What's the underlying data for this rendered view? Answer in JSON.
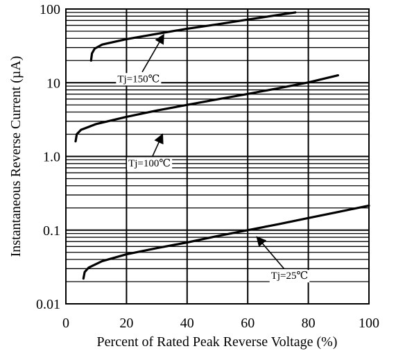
{
  "chart_data": {
    "type": "line",
    "title": "",
    "xlabel": "Percent of Rated Peak Reverse Voltage (%)",
    "ylabel": "Instantaneous Reverse Current (µA)",
    "x_scale": "linear",
    "y_scale": "log",
    "xlim": [
      0,
      100
    ],
    "ylim": [
      0.01,
      100
    ],
    "grid": true,
    "x_ticks": [
      0,
      20,
      40,
      60,
      80,
      100
    ],
    "x_tick_labels": [
      "0",
      "20",
      "40",
      "60",
      "80",
      "100"
    ],
    "y_ticks": [
      0.01,
      0.1,
      1.0,
      10,
      100
    ],
    "y_tick_labels": [
      "0.01",
      "0.1",
      "1.0",
      "10",
      "100"
    ],
    "line_color": "#000000",
    "series": [
      {
        "x": [
          8.3,
          8.6,
          9.5,
          12,
          20,
          30,
          40,
          50,
          60,
          70,
          75.7
        ],
        "y": [
          20,
          25,
          29,
          33,
          39,
          46,
          54,
          62,
          72,
          83,
          90
        ]
      },
      {
        "x": [
          3.2,
          3.6,
          5,
          10,
          20,
          30,
          40,
          50,
          60,
          70,
          80,
          89.8
        ],
        "y": [
          1.6,
          2.0,
          2.3,
          2.75,
          3.45,
          4.2,
          5.0,
          5.95,
          7.05,
          8.4,
          10.1,
          12.6
        ]
      },
      {
        "x": [
          5.8,
          6.2,
          7.5,
          12,
          20,
          30,
          40,
          50,
          60,
          70,
          80,
          90,
          100
        ],
        "y": [
          0.022,
          0.027,
          0.031,
          0.038,
          0.047,
          0.057,
          0.068,
          0.083,
          0.1,
          0.12,
          0.146,
          0.177,
          0.215
        ]
      }
    ],
    "annotations": [
      {
        "text": "Tj=150℃",
        "text_x": 24,
        "text_y": 11.5,
        "arrow_to": [
          32.3,
          45
        ]
      },
      {
        "text": "Tj=100℃",
        "text_x": 27.6,
        "text_y": 0.82,
        "arrow_to": [
          31.9,
          2.0
        ]
      },
      {
        "text": "Tj=25℃",
        "text_x": 73.8,
        "text_y": 0.0245,
        "arrow_to": [
          63,
          0.081
        ]
      }
    ]
  }
}
